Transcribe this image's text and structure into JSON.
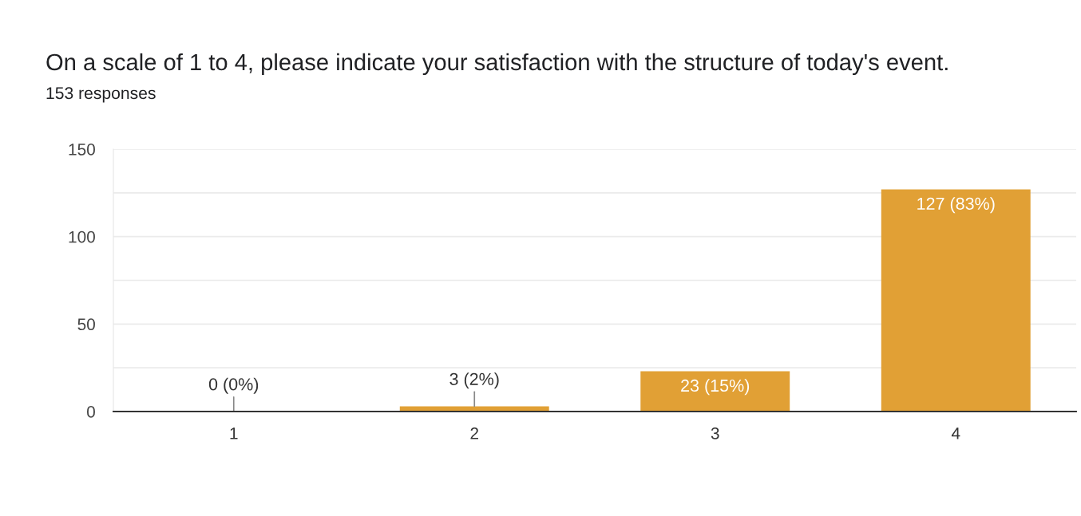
{
  "chart_data": {
    "type": "bar",
    "title": "On a scale of 1 to 4, please indicate your satisfaction with the structure of today's event.",
    "subtitle": "153 responses",
    "categories": [
      "1",
      "2",
      "3",
      "4"
    ],
    "values": [
      0,
      3,
      23,
      127
    ],
    "color": "#e1a035",
    "value_labels": [
      "0 (0%)",
      "3 (2%)",
      "23 (15%)",
      "127 (83%)"
    ],
    "ylim": [
      0,
      150
    ],
    "yticks": [
      0,
      {
        "value": 25,
        "label": null
      },
      50,
      {
        "value": 75,
        "label": null
      },
      100,
      {
        "value": 125,
        "label": null
      },
      150
    ],
    "grid": "y"
  }
}
